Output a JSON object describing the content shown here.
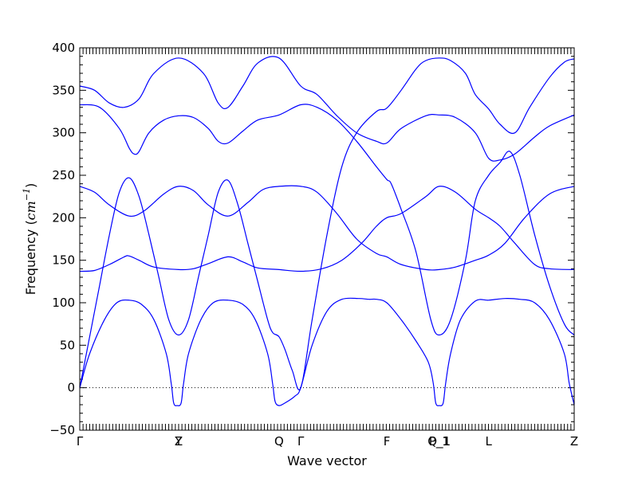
{
  "chart_data": {
    "type": "line",
    "title": "",
    "xlabel": "Wave vector",
    "ylabel_prefix": "Frequency (",
    "ylabel_unit": "cm",
    "ylabel_exp": "−1",
    "ylabel_suffix": ")",
    "ylim": [
      -50,
      400
    ],
    "xlim": [
      0,
      1
    ],
    "yticks": [
      -50,
      0,
      50,
      100,
      150,
      200,
      250,
      300,
      350,
      400
    ],
    "ytick_labels": [
      "−50",
      "0",
      "50",
      "100",
      "150",
      "200",
      "250",
      "300",
      "350",
      "400"
    ],
    "zero_line": true,
    "line_color": "#0000ff",
    "grid": false,
    "high_symmetry_points": [
      {
        "label": "Γ",
        "x": 0.0
      },
      {
        "label": "Z",
        "x": 0.2
      },
      {
        "label": "Y",
        "x": 0.2
      },
      {
        "label": "Q",
        "x": 0.403
      },
      {
        "label": "Γ",
        "x": 0.447
      },
      {
        "label": "F",
        "x": 0.621
      },
      {
        "label": "P_1",
        "x": 0.727
      },
      {
        "label": "Q_1",
        "x": 0.727
      },
      {
        "label": "L",
        "x": 0.827
      },
      {
        "label": "Z",
        "x": 1.0
      }
    ],
    "series": [
      {
        "points": [
          [
            0,
            0
          ],
          [
            0.02,
            40
          ],
          [
            0.05,
            80
          ],
          [
            0.075,
            100
          ],
          [
            0.1,
            103
          ],
          [
            0.125,
            98
          ],
          [
            0.15,
            80
          ],
          [
            0.175,
            40
          ],
          [
            0.185,
            5
          ],
          [
            0.19,
            -18
          ],
          [
            0.197,
            -21
          ],
          [
            0.205,
            -18
          ],
          [
            0.21,
            5
          ],
          [
            0.22,
            40
          ],
          [
            0.245,
            80
          ],
          [
            0.27,
            100
          ],
          [
            0.3,
            103
          ],
          [
            0.33,
            98
          ],
          [
            0.355,
            80
          ],
          [
            0.38,
            40
          ],
          [
            0.39,
            5
          ],
          [
            0.395,
            -16
          ],
          [
            0.403,
            -21
          ],
          [
            0.415,
            -18
          ],
          [
            0.435,
            -10
          ],
          [
            0.447,
            0
          ],
          [
            0.47,
            50
          ],
          [
            0.5,
            90
          ],
          [
            0.53,
            104
          ],
          [
            0.565,
            105
          ],
          [
            0.585,
            104
          ],
          [
            0.6,
            104
          ],
          [
            0.621,
            100
          ],
          [
            0.65,
            80
          ],
          [
            0.68,
            55
          ],
          [
            0.705,
            30
          ],
          [
            0.715,
            5
          ],
          [
            0.72,
            -18
          ],
          [
            0.727,
            -21
          ],
          [
            0.735,
            -18
          ],
          [
            0.74,
            5
          ],
          [
            0.75,
            40
          ],
          [
            0.77,
            80
          ],
          [
            0.8,
            102
          ],
          [
            0.827,
            103
          ],
          [
            0.86,
            105
          ],
          [
            0.89,
            104
          ],
          [
            0.92,
            100
          ],
          [
            0.95,
            80
          ],
          [
            0.98,
            40
          ],
          [
            0.99,
            5
          ],
          [
            1,
            -20
          ]
        ]
      },
      {
        "points": [
          [
            0,
            0
          ],
          [
            0.02,
            60
          ],
          [
            0.04,
            120
          ],
          [
            0.06,
            180
          ],
          [
            0.08,
            230
          ],
          [
            0.1,
            247
          ],
          [
            0.12,
            225
          ],
          [
            0.14,
            180
          ],
          [
            0.16,
            130
          ],
          [
            0.18,
            80
          ],
          [
            0.2,
            62
          ],
          [
            0.22,
            80
          ],
          [
            0.24,
            130
          ],
          [
            0.26,
            180
          ],
          [
            0.28,
            230
          ],
          [
            0.3,
            244
          ],
          [
            0.32,
            215
          ],
          [
            0.34,
            170
          ],
          [
            0.36,
            125
          ],
          [
            0.38,
            80
          ],
          [
            0.39,
            65
          ],
          [
            0.403,
            60
          ],
          [
            0.415,
            45
          ],
          [
            0.43,
            20
          ],
          [
            0.447,
            0
          ],
          [
            0.47,
            80
          ],
          [
            0.5,
            180
          ],
          [
            0.53,
            260
          ],
          [
            0.56,
            300
          ],
          [
            0.6,
            325
          ],
          [
            0.621,
            329
          ],
          [
            0.65,
            350
          ],
          [
            0.68,
            375
          ],
          [
            0.7,
            385
          ],
          [
            0.727,
            388
          ],
          [
            0.75,
            385
          ],
          [
            0.78,
            370
          ],
          [
            0.8,
            345
          ],
          [
            0.827,
            328
          ],
          [
            0.85,
            310
          ],
          [
            0.88,
            300
          ],
          [
            0.91,
            330
          ],
          [
            0.95,
            365
          ],
          [
            0.98,
            383
          ],
          [
            1,
            387
          ]
        ]
      },
      {
        "points": [
          [
            0,
            137
          ],
          [
            0.03,
            138
          ],
          [
            0.06,
            145
          ],
          [
            0.09,
            154
          ],
          [
            0.1,
            155
          ],
          [
            0.12,
            150
          ],
          [
            0.15,
            142
          ],
          [
            0.2,
            139
          ],
          [
            0.23,
            140
          ],
          [
            0.26,
            146
          ],
          [
            0.3,
            154
          ],
          [
            0.33,
            148
          ],
          [
            0.36,
            141
          ],
          [
            0.403,
            139
          ],
          [
            0.447,
            137
          ],
          [
            0.49,
            140
          ],
          [
            0.53,
            150
          ],
          [
            0.57,
            170
          ],
          [
            0.6,
            190
          ],
          [
            0.621,
            200
          ],
          [
            0.65,
            205
          ],
          [
            0.7,
            225
          ],
          [
            0.727,
            237
          ],
          [
            0.76,
            230
          ],
          [
            0.8,
            210
          ],
          [
            0.827,
            200
          ],
          [
            0.85,
            190
          ],
          [
            0.88,
            170
          ],
          [
            0.92,
            145
          ],
          [
            0.95,
            140
          ],
          [
            1,
            139
          ]
        ]
      },
      {
        "points": [
          [
            0,
            237
          ],
          [
            0.03,
            230
          ],
          [
            0.06,
            215
          ],
          [
            0.1,
            202
          ],
          [
            0.13,
            208
          ],
          [
            0.17,
            228
          ],
          [
            0.2,
            237
          ],
          [
            0.23,
            232
          ],
          [
            0.26,
            215
          ],
          [
            0.3,
            202
          ],
          [
            0.34,
            218
          ],
          [
            0.37,
            233
          ],
          [
            0.403,
            237
          ],
          [
            0.447,
            237
          ],
          [
            0.48,
            230
          ],
          [
            0.52,
            205
          ],
          [
            0.56,
            175
          ],
          [
            0.6,
            158
          ],
          [
            0.621,
            154
          ],
          [
            0.65,
            145
          ],
          [
            0.7,
            139
          ],
          [
            0.727,
            139
          ],
          [
            0.76,
            142
          ],
          [
            0.8,
            150
          ],
          [
            0.827,
            156
          ],
          [
            0.86,
            170
          ],
          [
            0.9,
            200
          ],
          [
            0.95,
            228
          ],
          [
            1,
            237
          ]
        ]
      },
      {
        "points": [
          [
            0,
            333
          ],
          [
            0.04,
            330
          ],
          [
            0.08,
            305
          ],
          [
            0.1,
            282
          ],
          [
            0.11,
            275
          ],
          [
            0.12,
            278
          ],
          [
            0.14,
            300
          ],
          [
            0.17,
            315
          ],
          [
            0.2,
            320
          ],
          [
            0.23,
            318
          ],
          [
            0.26,
            305
          ],
          [
            0.28,
            290
          ],
          [
            0.3,
            288
          ],
          [
            0.33,
            302
          ],
          [
            0.36,
            315
          ],
          [
            0.403,
            321
          ],
          [
            0.447,
            333
          ],
          [
            0.48,
            330
          ],
          [
            0.52,
            315
          ],
          [
            0.56,
            290
          ],
          [
            0.6,
            260
          ],
          [
            0.621,
            245
          ],
          [
            0.63,
            240
          ],
          [
            0.65,
            210
          ],
          [
            0.68,
            160
          ],
          [
            0.71,
            80
          ],
          [
            0.727,
            62
          ],
          [
            0.75,
            80
          ],
          [
            0.78,
            150
          ],
          [
            0.8,
            220
          ],
          [
            0.827,
            250
          ],
          [
            0.85,
            265
          ],
          [
            0.87,
            278
          ],
          [
            0.89,
            250
          ],
          [
            0.92,
            180
          ],
          [
            0.95,
            120
          ],
          [
            0.98,
            75
          ],
          [
            1,
            62
          ]
        ]
      },
      {
        "points": [
          [
            0,
            355
          ],
          [
            0.03,
            350
          ],
          [
            0.06,
            335
          ],
          [
            0.09,
            330
          ],
          [
            0.12,
            340
          ],
          [
            0.15,
            370
          ],
          [
            0.2,
            388
          ],
          [
            0.25,
            370
          ],
          [
            0.28,
            335
          ],
          [
            0.3,
            330
          ],
          [
            0.33,
            355
          ],
          [
            0.36,
            382
          ],
          [
            0.403,
            388
          ],
          [
            0.447,
            355
          ],
          [
            0.48,
            345
          ],
          [
            0.52,
            320
          ],
          [
            0.56,
            300
          ],
          [
            0.6,
            290
          ],
          [
            0.621,
            288
          ],
          [
            0.65,
            305
          ],
          [
            0.7,
            320
          ],
          [
            0.727,
            321
          ],
          [
            0.76,
            318
          ],
          [
            0.8,
            300
          ],
          [
            0.827,
            270
          ],
          [
            0.85,
            268
          ],
          [
            0.88,
            275
          ],
          [
            0.92,
            295
          ],
          [
            0.95,
            308
          ],
          [
            1,
            321
          ]
        ]
      }
    ]
  }
}
